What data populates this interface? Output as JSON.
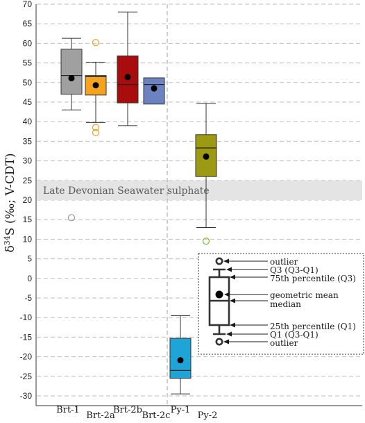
{
  "chart_data": {
    "type": "box",
    "ylabel_main": "δ",
    "ylabel_sup": "34",
    "ylabel_rest": "S (‰; V-CDT)",
    "ylim": [
      -32,
      70
    ],
    "yticks": [
      -30,
      -25,
      -20,
      -15,
      -10,
      -5,
      0,
      5,
      10,
      15,
      20,
      25,
      30,
      35,
      40,
      45,
      50,
      55,
      60,
      65,
      70
    ],
    "grid": "horizontal dashed",
    "categories": [
      "Brt-1",
      "Brt-2a",
      "Brt-2b",
      "Brt-2c",
      "Py-1",
      "Py-2"
    ],
    "boxes": [
      {
        "name": "Brt-1",
        "fill": "#a0a0a0",
        "whisker_low": 43,
        "q1": 47,
        "median": 51.8,
        "q3": 58.5,
        "whisker_high": 61.3,
        "mean": 51.1,
        "outliers": [
          15.5
        ],
        "outlier_color": "#9a9a9a"
      },
      {
        "name": "Brt-2a",
        "fill": "#f5a21f",
        "whisker_low": 39.8,
        "q1": 46.8,
        "median": 51.5,
        "q3": 51.8,
        "whisker_high": 55.2,
        "mean": 49.3,
        "outliers": [
          60.2,
          38.5,
          37.2
        ],
        "outlier_color": "#f0a024"
      },
      {
        "name": "Brt-2b",
        "fill": "#a80c0c",
        "whisker_low": 39,
        "q1": 44.8,
        "median": 49.5,
        "q3": 56.8,
        "whisker_high": 68,
        "mean": 51.4,
        "outliers": [],
        "outlier_color": "#a80c0c"
      },
      {
        "name": "Brt-2c",
        "fill": "#6d82c0",
        "whisker_low": null,
        "q1": 44.5,
        "median": 49.5,
        "q3": 51.2,
        "whisker_high": null,
        "mean": 48.5,
        "outliers": [],
        "outlier_color": "#6d82c0"
      },
      {
        "name": "Py-1",
        "fill": "#1fa4d8",
        "whisker_low": -29.5,
        "q1": -25.5,
        "median": -23.5,
        "q3": -15.3,
        "whisker_high": -9.5,
        "mean": -20.9,
        "outliers": [],
        "outlier_color": "#1fa4d8"
      },
      {
        "name": "Py-2",
        "fill": "#9c9a12",
        "whisker_low": 13,
        "q1": 26,
        "median": 33.3,
        "q3": 36.7,
        "whisker_high": 44.7,
        "mean": 31.1,
        "outliers": [
          9.5
        ],
        "outlier_color": "#7bb82a"
      }
    ],
    "band": {
      "label": "Late Devonian Seawater sulphate",
      "y_low": 20,
      "y_high": 25,
      "color": "#e4e4e4"
    },
    "separator_between": [
      "Brt-2c",
      "Py-1"
    ],
    "legend": {
      "placement": "bottom-right",
      "items": [
        {
          "key": "outlier_top",
          "label": "outlier"
        },
        {
          "key": "whisker_top",
          "label": "Q3 (Q3-Q1)"
        },
        {
          "key": "q3",
          "label": "75th percentile (Q3)"
        },
        {
          "key": "mean",
          "label": "geometric mean"
        },
        {
          "key": "median",
          "label": "median"
        },
        {
          "key": "q1",
          "label": "25th percentile (Q1)"
        },
        {
          "key": "whisker_bottom",
          "label": "Q1 (Q3-Q1)"
        },
        {
          "key": "outlier_bottom",
          "label": "outlier"
        }
      ]
    }
  }
}
